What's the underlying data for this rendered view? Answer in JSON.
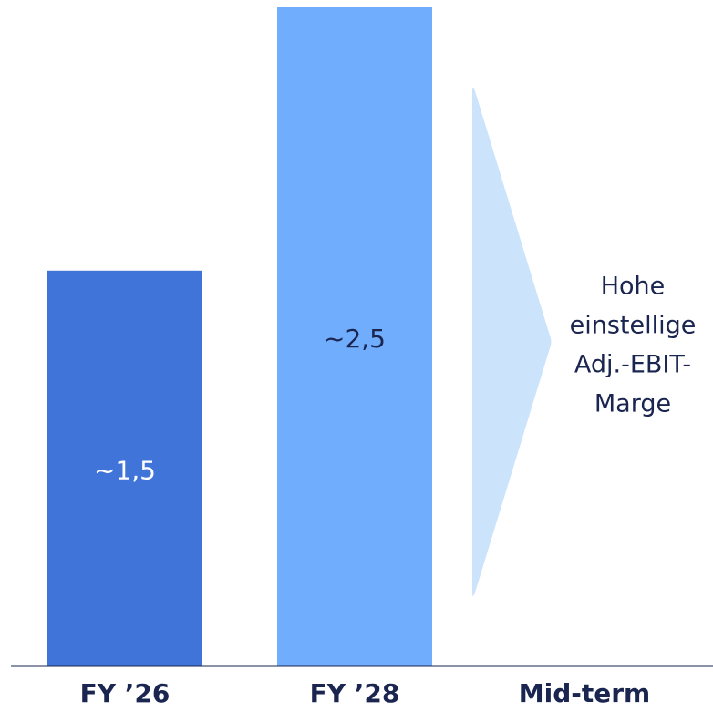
{
  "chart_data": {
    "type": "bar",
    "categories": [
      "FY ’26",
      "FY ’28",
      "Mid-term"
    ],
    "values": [
      1.5,
      2.5,
      null
    ],
    "value_labels": [
      "~1,5",
      "~2,5",
      null
    ],
    "colors": [
      "#4074d9",
      "#70adfc",
      null
    ],
    "annotation": [
      "Hohe",
      "einstellige",
      "Adj.-EBIT-",
      "Marge"
    ],
    "ylim": [
      0,
      2.5
    ]
  }
}
